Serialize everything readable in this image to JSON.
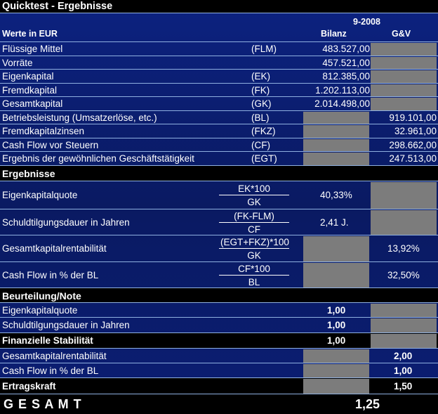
{
  "title": "Quicktest - Ergebnisse",
  "period": "9-2008",
  "currency_label": "Werte in EUR",
  "col_bilanz": "Bilanz",
  "col_guv": "G&V",
  "input_rows": [
    {
      "label": "Flüssige Mittel",
      "abbr": "(FLM)",
      "bilanz": "483.527,00",
      "guv": ""
    },
    {
      "label": "Vorräte",
      "abbr": "",
      "bilanz": "457.521,00",
      "guv": ""
    },
    {
      "label": "Eigenkapital",
      "abbr": "(EK)",
      "bilanz": "812.385,00",
      "guv": ""
    },
    {
      "label": "Fremdkapital",
      "abbr": "(FK)",
      "bilanz": "1.202.113,00",
      "guv": ""
    },
    {
      "label": "Gesamtkapital",
      "abbr": "(GK)",
      "bilanz": "2.014.498,00",
      "guv": ""
    },
    {
      "label": "Betriebsleistung (Umsatzerlöse, etc.)",
      "abbr": "(BL)",
      "bilanz": "",
      "guv": "919.101,00"
    },
    {
      "label": "Fremdkapitalzinsen",
      "abbr": "(FKZ)",
      "bilanz": "",
      "guv": "32.961,00"
    },
    {
      "label": "Cash Flow vor Steuern",
      "abbr": "(CF)",
      "bilanz": "",
      "guv": "298.662,00"
    },
    {
      "label": "Ergebnis der gewöhnlichen Geschäftstätigkeit",
      "abbr": "(EGT)",
      "bilanz": "",
      "guv": "247.513,00"
    }
  ],
  "results_header": "Ergebnisse",
  "results": [
    {
      "label": "Eigenkapitalquote",
      "num": "EK*100",
      "den": "GK",
      "bilanz": "40,33%",
      "guv": ""
    },
    {
      "label": "Schuldtilgungsdauer in Jahren",
      "num": "(FK-FLM)",
      "den": "CF",
      "bilanz": "2,41 J.",
      "guv": ""
    },
    {
      "label": "Gesamtkapitalrentabilität",
      "num": "(EGT+FKZ)*100",
      "den": "GK",
      "bilanz": "",
      "guv": "13,92%"
    },
    {
      "label": "Cash Flow in % der BL",
      "num": "CF*100",
      "den": "BL",
      "bilanz": "",
      "guv": "32,50%"
    }
  ],
  "rating_header": "Beurteilung/Note",
  "ratings": [
    {
      "label": "Eigenkapitalquote",
      "bilanz": "1,00",
      "guv": ""
    },
    {
      "label": "Schuldtilgungsdauer in Jahren",
      "bilanz": "1,00",
      "guv": ""
    },
    {
      "label": "Finanzielle Stabilität",
      "bilanz": "1,00",
      "guv": ""
    },
    {
      "label": "Gesamtkapitalrentabilität",
      "bilanz": "",
      "guv": "2,00"
    },
    {
      "label": "Cash Flow in % der BL",
      "bilanz": "",
      "guv": "1,00"
    },
    {
      "label": "Ertragskraft",
      "bilanz": "",
      "guv": "1,50"
    }
  ],
  "total_label": "G E S A M T",
  "total_value": "1,25"
}
